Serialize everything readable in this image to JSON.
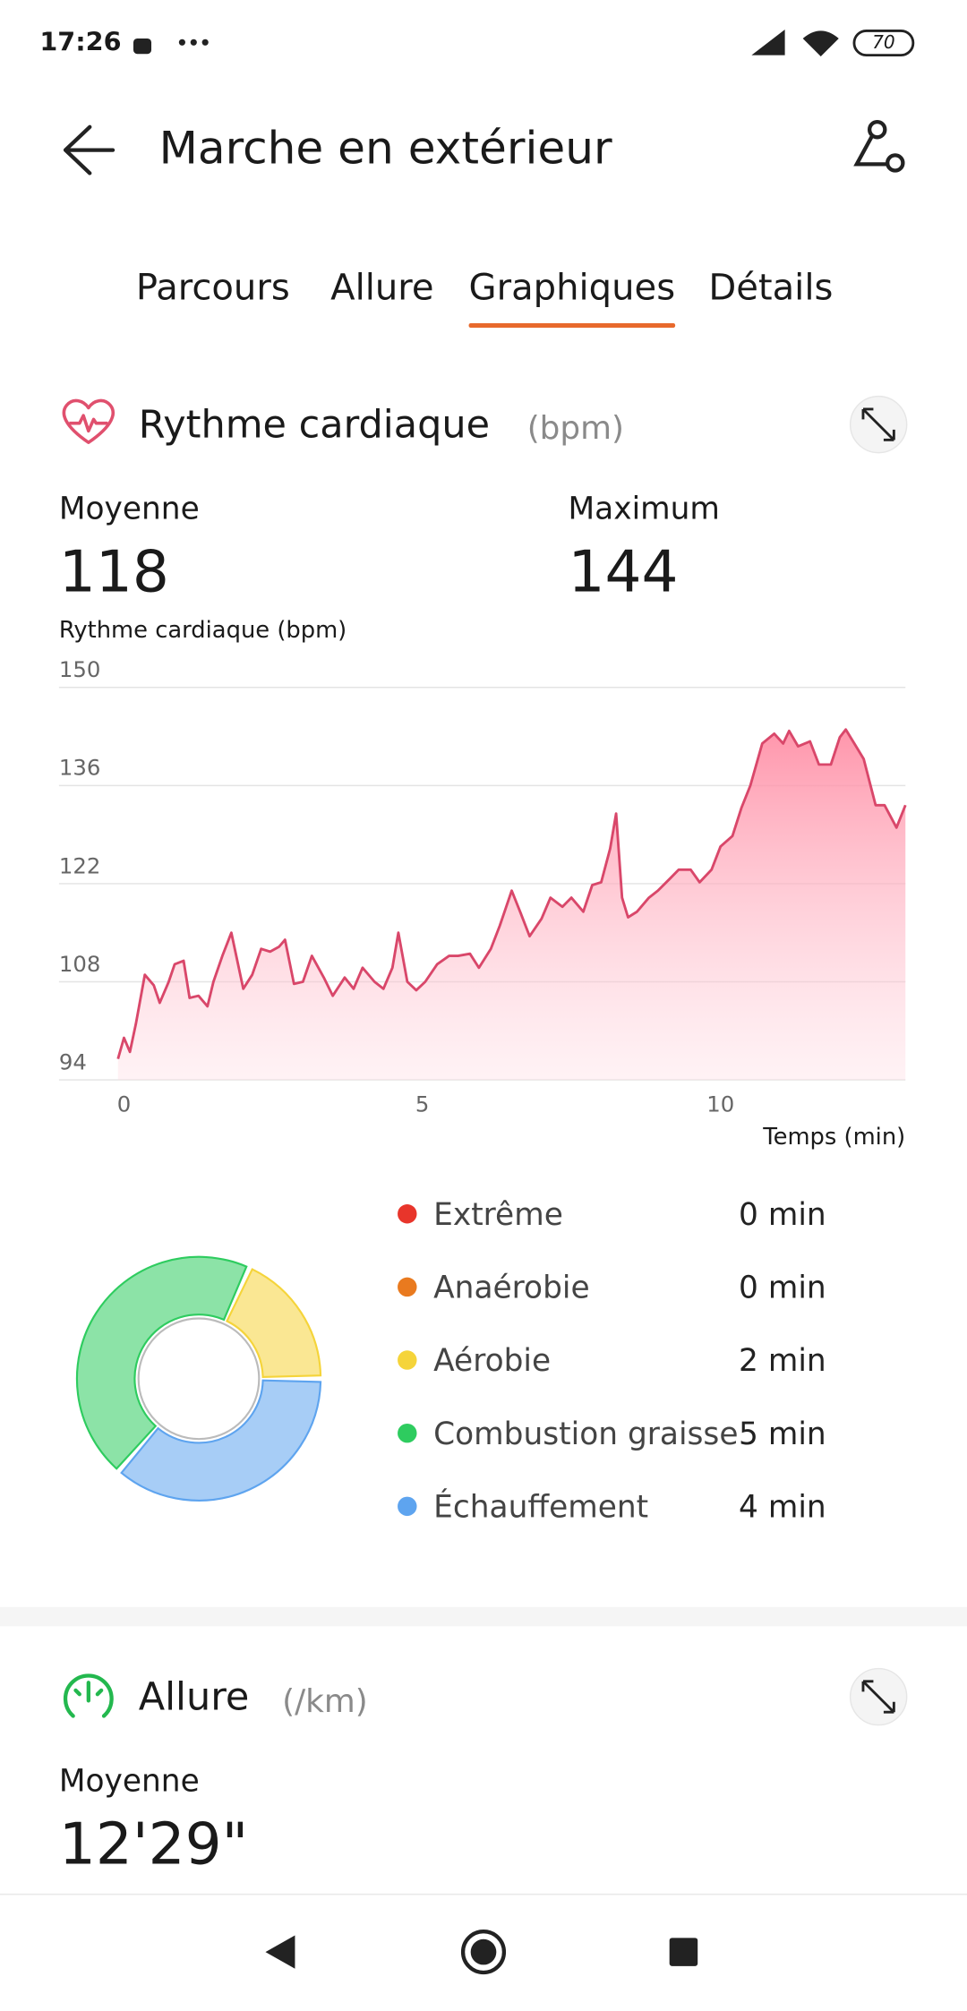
{
  "status_bar": {
    "time": "17:26",
    "battery": "70"
  },
  "header": {
    "title": "Marche en extérieur"
  },
  "tabs": [
    {
      "label": "Parcours"
    },
    {
      "label": "Allure"
    },
    {
      "label": "Graphiques",
      "active": true
    },
    {
      "label": "Détails"
    }
  ],
  "heart_rate": {
    "title": "Rythme cardiaque",
    "unit": "(bpm)",
    "stats": [
      {
        "label": "Moyenne",
        "value": 118
      },
      {
        "label": "Maximum",
        "value": 144
      }
    ]
  },
  "chart_data": [
    {
      "type": "line",
      "ylabel": "Rythme cardiaque (bpm)",
      "xlabel": "Temps (min)",
      "color": "#d9476a",
      "x": [
        -0.1,
        0.0,
        0.1,
        0.2,
        0.35,
        0.5,
        0.6,
        0.75,
        0.85,
        1.0,
        1.1,
        1.25,
        1.4,
        1.5,
        1.65,
        1.8,
        2.0,
        2.15,
        2.3,
        2.45,
        2.6,
        2.7,
        2.85,
        3.0,
        3.15,
        3.35,
        3.5,
        3.7,
        3.85,
        4.0,
        4.2,
        4.35,
        4.5,
        4.6,
        4.75,
        4.9,
        5.05,
        5.25,
        5.45,
        5.6,
        5.8,
        5.95,
        6.15,
        6.3,
        6.5,
        6.65,
        6.8,
        7.0,
        7.15,
        7.35,
        7.5,
        7.7,
        7.85,
        8.0,
        8.15,
        8.25,
        8.35,
        8.45,
        8.6,
        8.8,
        8.95,
        9.15,
        9.3,
        9.5,
        9.65,
        9.85,
        10.0,
        10.2,
        10.35,
        10.5,
        10.7,
        10.9,
        11.05,
        11.15,
        11.3,
        11.5,
        11.65,
        11.85,
        12.0,
        12.1,
        12.25,
        12.4,
        12.6,
        12.75,
        12.95,
        13.1
      ],
      "values": [
        97,
        100,
        98,
        102,
        109,
        107.5,
        105,
        108,
        110.5,
        111,
        105.7,
        106,
        104.5,
        108,
        111.7,
        115,
        107,
        109,
        112.7,
        112.3,
        113,
        114,
        107.7,
        108,
        111.7,
        108.6,
        106,
        108.6,
        107,
        110,
        108,
        107,
        110,
        115,
        108,
        106.8,
        108,
        110.5,
        111.7,
        111.7,
        112,
        110,
        112.7,
        116,
        121,
        117.8,
        114.5,
        117,
        120,
        118.7,
        120,
        118,
        121.8,
        122.2,
        127,
        132,
        120,
        117.2,
        118,
        120,
        121,
        122.7,
        124,
        124,
        122.2,
        124,
        127.3,
        128.8,
        132.8,
        136,
        142,
        143.4,
        142,
        143.8,
        141.6,
        142.3,
        139,
        139,
        142.9,
        144,
        141.9,
        139.8,
        133.2,
        133.2,
        130,
        133.2
      ],
      "xlim": [
        -0.1,
        13.1
      ],
      "ylim": [
        94,
        150
      ],
      "xticks": [
        0,
        5,
        10
      ],
      "yticks": [
        94,
        108,
        122,
        136,
        150
      ],
      "grid": true
    },
    {
      "type": "donut",
      "categories": [
        "Extrême",
        "Anaérobie",
        "Aérobie",
        "Combustion graisse",
        "Échauffement"
      ],
      "values": [
        0,
        0,
        2,
        5,
        4
      ],
      "value_labels": [
        "0 min",
        "0 min",
        "2 min",
        "5 min",
        "4 min"
      ],
      "colors": [
        "#e8352b",
        "#e97a1f",
        "#f5d43a",
        "#2ecc5f",
        "#5ea4ef"
      ]
    }
  ],
  "pace": {
    "title": "Allure",
    "unit": "(/km)",
    "stats": [
      {
        "label": "Moyenne",
        "value": "12'29\""
      }
    ]
  }
}
